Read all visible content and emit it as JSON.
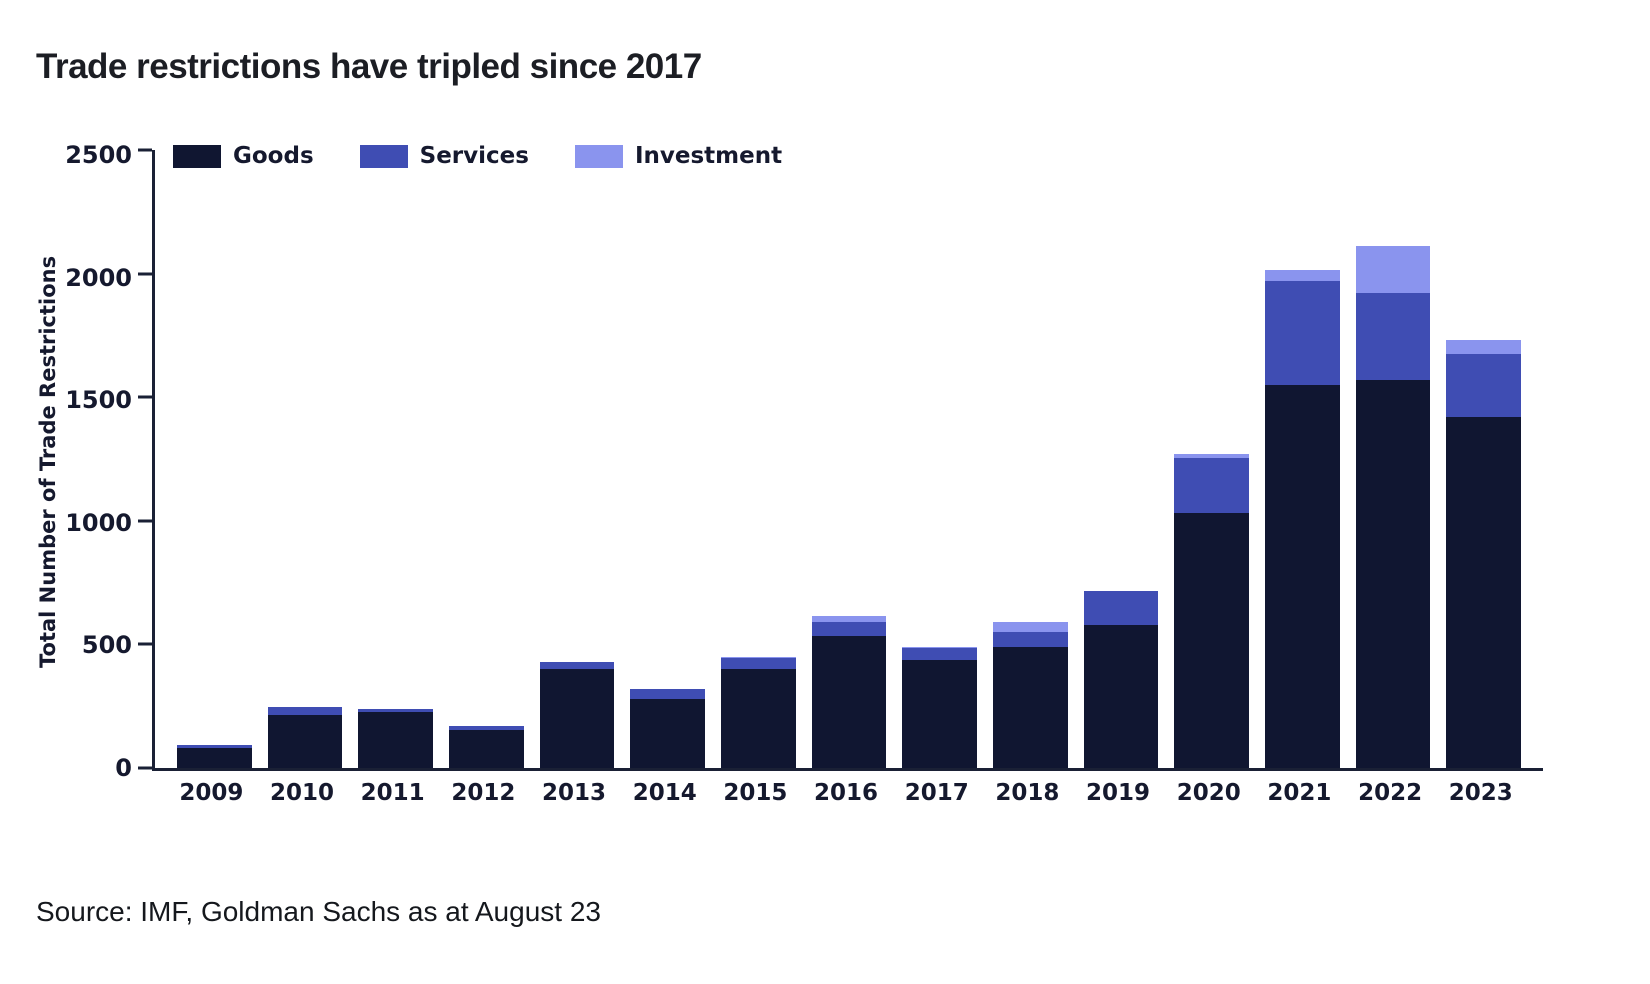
{
  "header": {
    "title": "Trade restrictions have tripled since 2017"
  },
  "footer": {
    "source": "Source: IMF, Goldman Sachs as at August 23"
  },
  "chart_data": {
    "type": "bar",
    "stacked": true,
    "title": "Trade restrictions have tripled since 2017",
    "xlabel": "",
    "ylabel": "Total Number of Trade Restrictions",
    "ylim": [
      0,
      2500
    ],
    "yticks": [
      0,
      500,
      1000,
      1500,
      2000,
      2500
    ],
    "grid": false,
    "legend_position": "top",
    "categories": [
      "2009",
      "2010",
      "2011",
      "2012",
      "2013",
      "2014",
      "2015",
      "2016",
      "2017",
      "2018",
      "2019",
      "2020",
      "2021",
      "2022",
      "2023"
    ],
    "series": [
      {
        "name": "Goods",
        "color": "#101631",
        "values": [
          80,
          215,
          225,
          155,
          400,
          280,
          400,
          535,
          435,
          490,
          580,
          1030,
          1550,
          1570,
          1420
        ]
      },
      {
        "name": "Services",
        "color": "#3f4db3",
        "values": [
          15,
          30,
          15,
          15,
          30,
          40,
          45,
          55,
          50,
          60,
          135,
          225,
          420,
          350,
          255
        ]
      },
      {
        "name": "Investment",
        "color": "#8a94ee",
        "values": [
          0,
          0,
          0,
          0,
          0,
          0,
          5,
          25,
          5,
          40,
          0,
          15,
          45,
          190,
          55
        ]
      }
    ],
    "totals": [
      95,
      245,
      240,
      170,
      430,
      320,
      450,
      615,
      490,
      590,
      715,
      1270,
      2015,
      2110,
      1730
    ],
    "source": "Source: IMF, Goldman Sachs as at August 23"
  }
}
